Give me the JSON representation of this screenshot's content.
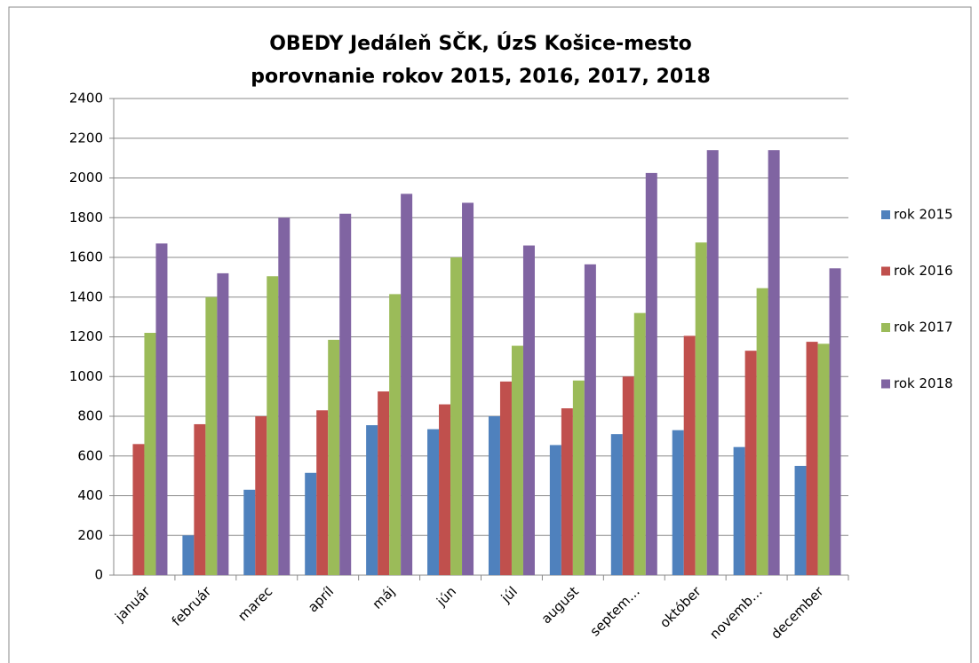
{
  "chart_data": {
    "type": "bar",
    "title": [
      "OBEDY Jedáleň SČK, ÚzS Košice-mesto",
      "porovnanie rokov 2015, 2016, 2017, 2018"
    ],
    "categories": [
      "január",
      "február",
      "marec",
      "apríl",
      "máj",
      "jún",
      "júl",
      "august",
      "septem…",
      "október",
      "novemb…",
      "december"
    ],
    "series": [
      {
        "name": "rok 2015",
        "color": "#4f81bd",
        "values": [
          null,
          200,
          430,
          515,
          755,
          735,
          800,
          655,
          710,
          730,
          645,
          550
        ]
      },
      {
        "name": "rok 2016",
        "color": "#c0504d",
        "values": [
          660,
          760,
          800,
          830,
          925,
          860,
          975,
          840,
          1000,
          1205,
          1130,
          1175
        ]
      },
      {
        "name": "rok 2017",
        "color": "#9bbb59",
        "values": [
          1220,
          1400,
          1505,
          1185,
          1415,
          1600,
          1155,
          980,
          1320,
          1675,
          1445,
          1165
        ]
      },
      {
        "name": "rok 2018",
        "color": "#8064a2",
        "values": [
          1670,
          1520,
          1800,
          1820,
          1920,
          1875,
          1660,
          1565,
          2025,
          2140,
          2140,
          1545
        ]
      }
    ],
    "ylim": [
      0,
      2400
    ],
    "yticks": [
      0,
      200,
      400,
      600,
      800,
      1000,
      1200,
      1400,
      1600,
      1800,
      2000,
      2200,
      2400
    ],
    "grid": true,
    "legend": "right"
  }
}
